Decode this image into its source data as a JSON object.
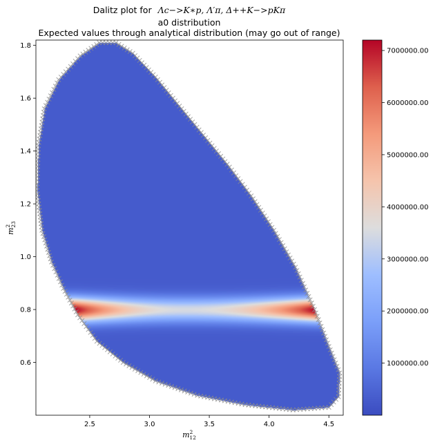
{
  "chart_data": {
    "type": "heatmap",
    "title_prefix": "Dalitz plot for",
    "title_math": "Λc−>K∗p, Λ′π, Δ++K−>pKπ",
    "subtitle": "a0 distribution",
    "subtitle2": "Expected values through analytical distribution (may go out of range)",
    "xlabel": {
      "base": "m",
      "sup": "2",
      "sub": "12"
    },
    "ylabel": {
      "base": "m",
      "sup": "2",
      "sub": "23"
    },
    "xlim": [
      2.05,
      4.62
    ],
    "ylim": [
      0.4,
      1.82
    ],
    "xticks": [
      2.5,
      3.0,
      3.5,
      4.0,
      4.5
    ],
    "xtick_labels": [
      "2.5",
      "3.0",
      "3.5",
      "4.0",
      "4.5"
    ],
    "yticks": [
      0.6,
      0.8,
      1.0,
      1.2,
      1.4,
      1.6,
      1.8
    ],
    "ytick_labels": [
      "0.6",
      "0.8",
      "1.0",
      "1.2",
      "1.4",
      "1.6",
      "1.8"
    ],
    "colormap": "coolwarm",
    "colorbar": {
      "min": 0,
      "max": 7200000,
      "ticks": [
        1000000,
        2000000,
        3000000,
        4000000,
        5000000,
        6000000,
        7000000
      ],
      "tick_labels": [
        "1000000.00",
        "2000000.00",
        "3000000.00",
        "4000000.00",
        "5000000.00",
        "6000000.00",
        "7000000.00"
      ]
    },
    "boundary": [
      [
        2.58,
        1.81
      ],
      [
        2.42,
        1.76
      ],
      [
        2.24,
        1.67
      ],
      [
        2.12,
        1.56
      ],
      [
        2.07,
        1.42
      ],
      [
        2.06,
        1.25
      ],
      [
        2.1,
        1.1
      ],
      [
        2.18,
        0.98
      ],
      [
        2.28,
        0.88
      ],
      [
        2.4,
        0.78
      ],
      [
        2.56,
        0.68
      ],
      [
        2.78,
        0.6
      ],
      [
        3.05,
        0.53
      ],
      [
        3.4,
        0.475
      ],
      [
        3.8,
        0.44
      ],
      [
        4.2,
        0.42
      ],
      [
        4.5,
        0.43
      ],
      [
        4.58,
        0.47
      ],
      [
        4.59,
        0.56
      ],
      [
        4.5,
        0.66
      ],
      [
        4.38,
        0.8
      ],
      [
        4.22,
        0.96
      ],
      [
        4.04,
        1.1
      ],
      [
        3.85,
        1.23
      ],
      [
        3.65,
        1.35
      ],
      [
        3.45,
        1.46
      ],
      [
        3.25,
        1.57
      ],
      [
        3.05,
        1.68
      ],
      [
        2.86,
        1.77
      ],
      [
        2.72,
        1.81
      ]
    ],
    "resonance_band": {
      "center_y": 0.8,
      "halfwidth_y": 0.045,
      "peak_value": 7200000,
      "trough_value": 3500000,
      "trough_x": 3.3,
      "background_value": 300000
    }
  }
}
